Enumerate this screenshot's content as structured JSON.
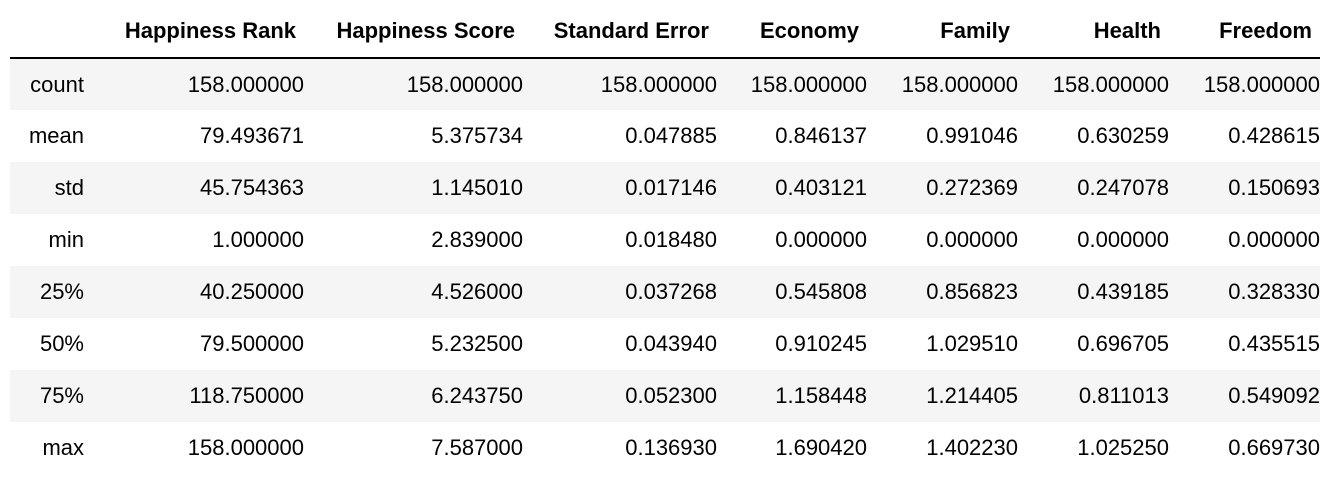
{
  "table": {
    "columns": [
      "",
      "Happiness Rank",
      "Happiness Score",
      "Standard Error",
      "Economy",
      "Family",
      "Health",
      "Freedom"
    ],
    "rows": [
      {
        "label": "count",
        "values": [
          "158.000000",
          "158.000000",
          "158.000000",
          "158.000000",
          "158.000000",
          "158.000000",
          "158.000000"
        ]
      },
      {
        "label": "mean",
        "values": [
          "79.493671",
          "5.375734",
          "0.047885",
          "0.846137",
          "0.991046",
          "0.630259",
          "0.428615"
        ]
      },
      {
        "label": "std",
        "values": [
          "45.754363",
          "1.145010",
          "0.017146",
          "0.403121",
          "0.272369",
          "0.247078",
          "0.150693"
        ]
      },
      {
        "label": "min",
        "values": [
          "1.000000",
          "2.839000",
          "0.018480",
          "0.000000",
          "0.000000",
          "0.000000",
          "0.000000"
        ]
      },
      {
        "label": "25%",
        "values": [
          "40.250000",
          "4.526000",
          "0.037268",
          "0.545808",
          "0.856823",
          "0.439185",
          "0.328330"
        ]
      },
      {
        "label": "50%",
        "values": [
          "79.500000",
          "5.232500",
          "0.043940",
          "0.910245",
          "1.029510",
          "0.696705",
          "0.435515"
        ]
      },
      {
        "label": "75%",
        "values": [
          "118.750000",
          "6.243750",
          "0.052300",
          "1.158448",
          "1.214405",
          "0.811013",
          "0.549092"
        ]
      },
      {
        "label": "max",
        "values": [
          "158.000000",
          "7.587000",
          "0.136930",
          "1.690420",
          "1.402230",
          "1.025250",
          "0.669730"
        ]
      }
    ]
  }
}
